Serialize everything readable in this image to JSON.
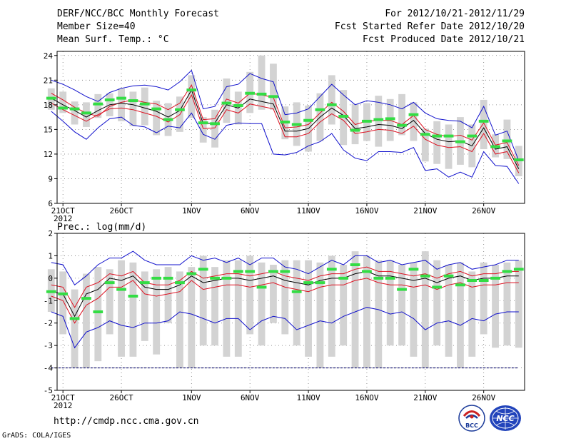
{
  "header": {
    "left": [
      "DERF/NCC/BCC Monthly Forecast",
      "Member Size=40",
      "Mean Surf. Temp.: °C"
    ],
    "right": [
      "For 2012/10/21-2012/11/29",
      "Fcst Started Refer Date 2012/10/20",
      "Fcst Produced Date 2012/10/21"
    ]
  },
  "footer": {
    "url": "http://cmdp.ncc.cma.gov.cn",
    "credit": "GrADS: COLA/IGES"
  },
  "logos": {
    "bcc": "BCC",
    "ncc": "NCC"
  },
  "colors": {
    "box": "#d3d3d3",
    "median": "#33dd44",
    "spread": "#1010cc",
    "pct": "#dd1020",
    "mean": "#000000",
    "grid": "#777777",
    "baseline": "#000066"
  },
  "chart_data": [
    {
      "type": "line",
      "title": "Mean Surf. Temp.: °C",
      "ylim": [
        6,
        24.5
      ],
      "yticks": [
        6,
        9,
        12,
        15,
        18,
        21,
        24
      ],
      "xticks": [
        {
          "day": 1,
          "label": "21OCT",
          "sub": "2012"
        },
        {
          "day": 6,
          "label": "26OCT"
        },
        {
          "day": 12,
          "label": "1NOV"
        },
        {
          "day": 17,
          "label": "6NOV"
        },
        {
          "day": 22,
          "label": "11NOV"
        },
        {
          "day": 27,
          "label": "16NOV"
        },
        {
          "day": 32,
          "label": "21NOV"
        },
        {
          "day": 37,
          "label": "26NOV"
        }
      ],
      "days": 40,
      "series": [
        {
          "name": "max",
          "values": [
            21.0,
            20.5,
            19.8,
            19.0,
            18.4,
            19.5,
            20.0,
            20.3,
            20.4,
            20.2,
            19.8,
            20.8,
            22.2,
            17.5,
            17.8,
            20.2,
            20.5,
            21.8,
            21.2,
            20.8,
            16.8,
            17.0,
            17.5,
            19.0,
            20.5,
            19.2,
            18.0,
            18.5,
            18.3,
            18.0,
            17.5,
            18.3,
            17.0,
            16.3,
            16.1,
            16.0,
            15.2,
            17.8,
            14.3,
            14.8,
            11.2
          ]
        },
        {
          "name": "upper",
          "values": [
            19.4,
            18.6,
            17.7,
            17.0,
            16.6,
            17.8,
            18.3,
            18.6,
            18.3,
            18.1,
            17.4,
            18.2,
            20.4,
            16.2,
            16.3,
            18.7,
            18.2,
            19.4,
            19.2,
            18.9,
            15.2,
            15.3,
            15.6,
            17.0,
            18.3,
            17.2,
            15.6,
            16.0,
            16.1,
            16.1,
            15.6,
            16.7,
            15.0,
            14.4,
            14.1,
            14.3,
            13.7,
            15.8,
            13.1,
            13.4,
            10.6
          ]
        },
        {
          "name": "mean",
          "values": [
            18.8,
            18.0,
            17.3,
            16.5,
            17.3,
            18.0,
            18.2,
            18.0,
            17.6,
            17.2,
            16.5,
            17.3,
            19.8,
            15.7,
            15.8,
            18.0,
            17.6,
            18.7,
            18.4,
            18.1,
            14.8,
            14.8,
            15.1,
            16.5,
            17.6,
            16.7,
            15.1,
            15.3,
            15.6,
            15.5,
            15.1,
            16.1,
            14.5,
            13.8,
            13.5,
            13.6,
            13.0,
            15.2,
            12.6,
            12.9,
            10.2
          ]
        },
        {
          "name": "lower",
          "values": [
            18.2,
            17.4,
            16.7,
            16.0,
            16.8,
            17.5,
            17.6,
            17.4,
            17.0,
            16.6,
            15.9,
            16.8,
            19.2,
            15.1,
            15.2,
            17.4,
            17.0,
            18.1,
            17.8,
            17.5,
            14.1,
            14.1,
            14.5,
            15.9,
            16.9,
            16.1,
            14.5,
            14.7,
            15.0,
            14.9,
            14.5,
            15.4,
            13.8,
            13.1,
            12.8,
            12.9,
            12.3,
            14.5,
            12.0,
            12.3,
            9.7
          ]
        },
        {
          "name": "min",
          "values": [
            17.2,
            16.0,
            14.7,
            13.8,
            15.2,
            16.3,
            16.5,
            15.5,
            15.3,
            14.6,
            15.4,
            15.2,
            17.0,
            14.4,
            13.8,
            15.5,
            15.8,
            15.7,
            15.7,
            12.0,
            11.9,
            12.2,
            13.0,
            13.5,
            14.5,
            12.5,
            11.5,
            11.2,
            12.3,
            12.3,
            12.2,
            12.8,
            10.0,
            10.2,
            9.2,
            9.8,
            9.2,
            12.3,
            10.6,
            10.5,
            8.4
          ]
        }
      ],
      "boxes": [
        [
          17.4,
          20.0
        ],
        [
          17.0,
          19.6
        ],
        [
          15.6,
          18.4
        ],
        [
          15.3,
          18.3
        ],
        [
          16.4,
          19.3
        ],
        [
          16.6,
          19.4
        ],
        [
          16.0,
          20.0
        ],
        [
          15.4,
          19.6
        ],
        [
          15.5,
          20.1
        ],
        [
          14.3,
          18.5
        ],
        [
          14.2,
          18.2
        ],
        [
          14.7,
          19.0
        ],
        [
          16.4,
          21.6
        ],
        [
          13.4,
          16.5
        ],
        [
          12.8,
          17.4
        ],
        [
          15.8,
          21.2
        ],
        [
          15.6,
          19.6
        ],
        [
          17.0,
          22.0
        ],
        [
          17.4,
          24.0
        ],
        [
          17.4,
          23.0
        ],
        [
          13.8,
          17.8
        ],
        [
          13.0,
          18.3
        ],
        [
          12.3,
          17.9
        ],
        [
          13.6,
          19.4
        ],
        [
          15.6,
          21.6
        ],
        [
          13.1,
          19.8
        ],
        [
          13.2,
          18.1
        ],
        [
          13.6,
          18.2
        ],
        [
          12.9,
          19.1
        ],
        [
          13.6,
          18.7
        ],
        [
          14.3,
          19.3
        ],
        [
          13.6,
          18.3
        ],
        [
          11.1,
          15.1
        ],
        [
          10.8,
          16.0
        ],
        [
          10.2,
          15.6
        ],
        [
          10.7,
          16.5
        ],
        [
          10.4,
          15.6
        ],
        [
          12.6,
          18.6
        ],
        [
          11.6,
          14.4
        ],
        [
          11.4,
          16.2
        ],
        [
          9.3,
          13.0
        ]
      ],
      "medians": [
        18.8,
        17.6,
        17.5,
        17.0,
        18.1,
        18.6,
        18.8,
        18.5,
        18.1,
        17.5,
        16.2,
        17.4,
        19.8,
        15.8,
        15.7,
        18.2,
        17.9,
        19.4,
        19.3,
        19.0,
        15.9,
        15.6,
        16.1,
        17.4,
        18.0,
        16.6,
        14.9,
        16.0,
        16.2,
        16.3,
        15.5,
        16.8,
        14.4,
        14.2,
        14.2,
        13.5,
        14.2,
        16.0,
        12.9,
        13.6,
        11.3
      ]
    },
    {
      "type": "line",
      "title": "Prec.: log(mm/d)",
      "ylim": [
        -5,
        2
      ],
      "yticks": [
        -5,
        -4,
        -3,
        -2,
        -1,
        0,
        1,
        2
      ],
      "xticks": [
        {
          "day": 1,
          "label": "21OCT",
          "sub": "2012"
        },
        {
          "day": 6,
          "label": "26OCT"
        },
        {
          "day": 12,
          "label": "1NOV"
        },
        {
          "day": 17,
          "label": "6NOV"
        },
        {
          "day": 22,
          "label": "11NOV"
        },
        {
          "day": 27,
          "label": "16NOV"
        },
        {
          "day": 32,
          "label": "21NOV"
        },
        {
          "day": 37,
          "label": "26NOV"
        }
      ],
      "days": 40,
      "baseline": -4,
      "series": [
        {
          "name": "max",
          "values": [
            0.7,
            0.6,
            -0.3,
            0.1,
            0.6,
            0.9,
            0.9,
            1.2,
            0.8,
            0.6,
            0.6,
            0.6,
            1.0,
            0.8,
            0.9,
            0.7,
            0.9,
            0.6,
            0.9,
            0.9,
            0.5,
            0.4,
            0.2,
            0.5,
            0.8,
            0.6,
            1.0,
            1.0,
            0.7,
            0.8,
            0.6,
            0.7,
            0.8,
            0.4,
            0.6,
            0.7,
            0.4,
            0.5,
            0.6,
            0.8,
            0.8
          ]
        },
        {
          "name": "upper",
          "values": [
            -0.3,
            -0.4,
            -1.3,
            -0.4,
            -0.2,
            0.2,
            0.1,
            0.3,
            -0.2,
            -0.3,
            -0.3,
            -0.1,
            0.3,
            0.0,
            0.1,
            0.2,
            0.2,
            0.1,
            0.2,
            0.3,
            0.1,
            0.0,
            -0.1,
            0.1,
            0.2,
            0.2,
            0.4,
            0.5,
            0.3,
            0.3,
            0.2,
            0.1,
            0.2,
            0.0,
            0.2,
            0.3,
            0.1,
            0.2,
            0.2,
            0.3,
            0.3
          ]
        },
        {
          "name": "mean",
          "values": [
            -0.6,
            -0.7,
            -1.7,
            -0.7,
            -0.5,
            0.0,
            -0.1,
            0.1,
            -0.4,
            -0.5,
            -0.5,
            -0.3,
            0.1,
            -0.2,
            -0.1,
            0.0,
            0.0,
            -0.1,
            0.0,
            0.1,
            -0.1,
            -0.2,
            -0.3,
            -0.1,
            0.0,
            0.0,
            0.2,
            0.3,
            0.1,
            0.1,
            0.0,
            -0.1,
            0.0,
            -0.2,
            0.0,
            0.1,
            -0.1,
            0.0,
            0.0,
            0.1,
            0.1
          ]
        },
        {
          "name": "lower",
          "values": [
            -0.8,
            -1.0,
            -2.0,
            -1.2,
            -0.9,
            -0.4,
            -0.4,
            -0.1,
            -0.7,
            -0.8,
            -0.7,
            -0.6,
            -0.1,
            -0.5,
            -0.4,
            -0.3,
            -0.3,
            -0.4,
            -0.3,
            -0.2,
            -0.4,
            -0.5,
            -0.6,
            -0.4,
            -0.3,
            -0.3,
            -0.1,
            0.0,
            -0.2,
            -0.3,
            -0.3,
            -0.4,
            -0.3,
            -0.5,
            -0.3,
            -0.2,
            -0.4,
            -0.3,
            -0.3,
            -0.2,
            -0.2
          ]
        },
        {
          "name": "min",
          "values": [
            -1.5,
            -1.7,
            -3.1,
            -2.4,
            -2.2,
            -1.9,
            -2.1,
            -2.2,
            -2.0,
            -2.0,
            -1.9,
            -1.5,
            -1.6,
            -1.8,
            -2.0,
            -1.8,
            -1.8,
            -2.3,
            -1.9,
            -1.7,
            -1.8,
            -2.3,
            -2.1,
            -1.9,
            -2.0,
            -1.7,
            -1.5,
            -1.3,
            -1.4,
            -1.6,
            -1.5,
            -1.8,
            -2.3,
            -2.0,
            -1.9,
            -2.1,
            -1.8,
            -1.9,
            -1.6,
            -1.5,
            -1.5
          ]
        }
      ],
      "boxes": [
        [
          -1.5,
          0.4
        ],
        [
          -2.5,
          0.3
        ],
        [
          -4.0,
          -0.5
        ],
        [
          -4.0,
          0.2
        ],
        [
          -3.7,
          0.5
        ],
        [
          -2.5,
          0.4
        ],
        [
          -3.5,
          0.8
        ],
        [
          -3.5,
          0.7
        ],
        [
          -2.8,
          0.3
        ],
        [
          -3.4,
          0.4
        ],
        [
          -2.0,
          0.5
        ],
        [
          -4.0,
          0.3
        ],
        [
          -4.0,
          0.5
        ],
        [
          -3.0,
          1.0
        ],
        [
          -3.0,
          0.5
        ],
        [
          -3.5,
          0.8
        ],
        [
          -3.5,
          0.8
        ],
        [
          -2.5,
          1.0
        ],
        [
          -3.0,
          0.7
        ],
        [
          -2.0,
          0.6
        ],
        [
          -2.5,
          0.8
        ],
        [
          -3.0,
          0.8
        ],
        [
          -3.5,
          0.8
        ],
        [
          -4.0,
          0.7
        ],
        [
          -3.5,
          1.0
        ],
        [
          -3.0,
          0.6
        ],
        [
          -4.0,
          1.2
        ],
        [
          -4.0,
          1.0
        ],
        [
          -4.0,
          0.8
        ],
        [
          -3.0,
          0.8
        ],
        [
          -3.0,
          0.6
        ],
        [
          -3.5,
          0.7
        ],
        [
          -4.0,
          1.2
        ],
        [
          -3.0,
          0.8
        ],
        [
          -3.5,
          0.6
        ],
        [
          -4.0,
          0.7
        ],
        [
          -3.5,
          0.3
        ],
        [
          -2.5,
          0.7
        ],
        [
          -3.1,
          0.6
        ],
        [
          -3.0,
          0.7
        ],
        [
          -3.1,
          0.8
        ]
      ],
      "medians": [
        -0.6,
        -0.7,
        -1.8,
        -0.9,
        -1.5,
        -0.2,
        -0.5,
        -0.8,
        -0.2,
        0.0,
        0.0,
        -0.2,
        0.2,
        0.4,
        0.0,
        0.0,
        0.3,
        0.3,
        -0.4,
        0.3,
        0.3,
        -0.6,
        -0.2,
        -0.2,
        0.4,
        0.0,
        0.6,
        0.3,
        0.0,
        0.0,
        -0.5,
        0.4,
        0.1,
        -0.4,
        0.1,
        -0.3,
        -0.1,
        -0.1,
        0.0,
        0.3,
        0.4
      ]
    }
  ]
}
